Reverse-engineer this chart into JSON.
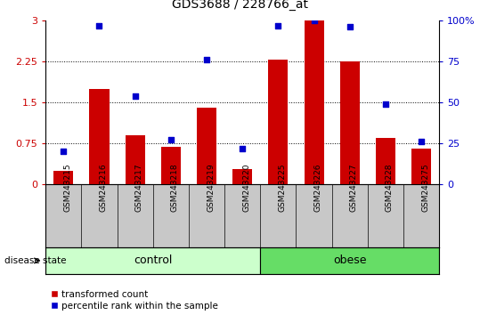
{
  "title": "GDS3688 / 228766_at",
  "samples": [
    "GSM243215",
    "GSM243216",
    "GSM243217",
    "GSM243218",
    "GSM243219",
    "GSM243220",
    "GSM243225",
    "GSM243226",
    "GSM243227",
    "GSM243228",
    "GSM243275"
  ],
  "bar_values": [
    0.25,
    1.75,
    0.9,
    0.68,
    1.4,
    0.28,
    2.28,
    3.0,
    2.25,
    0.85,
    0.65
  ],
  "dot_values_pct": [
    20,
    97,
    54,
    27,
    76,
    22,
    97,
    100,
    96,
    49,
    26
  ],
  "bar_color": "#cc0000",
  "dot_color": "#0000cc",
  "ylim_left": [
    0,
    3
  ],
  "ylim_right": [
    0,
    100
  ],
  "yticks_left": [
    0,
    0.75,
    1.5,
    2.25,
    3.0
  ],
  "ytick_labels_left": [
    "0",
    "0.75",
    "1.5",
    "2.25",
    "3"
  ],
  "yticks_right": [
    0,
    25,
    50,
    75,
    100
  ],
  "ytick_labels_right": [
    "0",
    "25",
    "50",
    "75",
    "100%"
  ],
  "hgrid_vals": [
    0.75,
    1.5,
    2.25
  ],
  "n_control": 6,
  "n_obese": 5,
  "control_color": "#ccffcc",
  "obese_color": "#66dd66",
  "bg_color": "#c8c8c8",
  "legend_bar_label": "transformed count",
  "legend_dot_label": "percentile rank within the sample",
  "disease_state_label": "disease state",
  "control_label": "control",
  "obese_label": "obese"
}
